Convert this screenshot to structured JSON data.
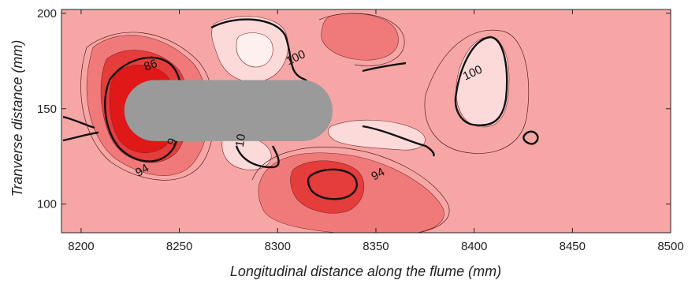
{
  "chart_data": {
    "type": "contour",
    "xlabel": "Longitudinal distance along the flume (mm)",
    "ylabel": "Tranverse distance (mm)",
    "xlim": [
      8190,
      8500
    ],
    "ylim": [
      85,
      202
    ],
    "x_ticks": [
      8200,
      8250,
      8300,
      8350,
      8400,
      8450,
      8500
    ],
    "y_ticks": [
      100,
      150,
      200
    ],
    "contour_labels": [
      {
        "text": "86",
        "x": 8236,
        "y": 171
      },
      {
        "text": "100",
        "x": 8310,
        "y": 175
      },
      {
        "text": "100",
        "x": 8400,
        "y": 167
      },
      {
        "text": "94",
        "x": 8232,
        "y": 116
      },
      {
        "text": "94",
        "x": 8352,
        "y": 114
      },
      {
        "text": "10",
        "x": 8283,
        "y": 133
      },
      {
        "text": "9",
        "x": 8248,
        "y": 132
      }
    ],
    "obstacle": {
      "x_start": 8222,
      "x_end": 8328,
      "y_center": 149,
      "half_width": 16
    },
    "colors": {
      "background": "#f7a6a6",
      "light": "#fcdada",
      "mid": "#f07a7a",
      "deep": "#e53c3c",
      "deepest": "#e01818",
      "obstacle": "#9a9a9a"
    }
  }
}
